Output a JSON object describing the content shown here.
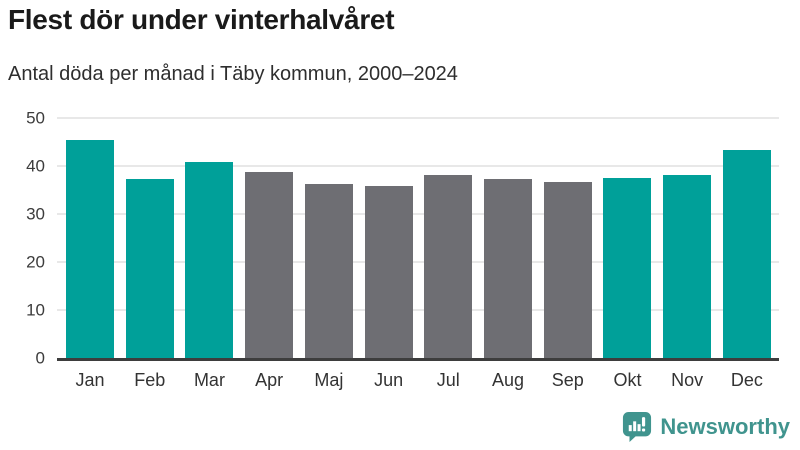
{
  "header": {
    "title": "Flest dör under vinterhalvåret",
    "subtitle": "Antal döda per månad i Täby kommun, 2000–2024"
  },
  "chart_data": {
    "type": "bar",
    "title": "Flest dör under vinterhalvåret",
    "subtitle": "Antal döda per månad i Täby kommun, 2000–2024",
    "categories": [
      "Jan",
      "Feb",
      "Mar",
      "Apr",
      "Maj",
      "Jun",
      "Jul",
      "Aug",
      "Sep",
      "Okt",
      "Nov",
      "Dec"
    ],
    "values": [
      45.4,
      37.3,
      40.9,
      38.8,
      36.3,
      35.9,
      38.1,
      37.3,
      36.7,
      37.5,
      38.1,
      43.4
    ],
    "bar_colors": [
      "#00a099",
      "#00a099",
      "#00a099",
      "#6e6e73",
      "#6e6e73",
      "#6e6e73",
      "#6e6e73",
      "#6e6e73",
      "#6e6e73",
      "#00a099",
      "#00a099",
      "#00a099"
    ],
    "colors": {
      "winter_months": "#00a099",
      "summer_months": "#6e6e73"
    },
    "xlabel": "",
    "ylabel": "",
    "ylim": [
      0,
      50
    ],
    "y_ticks": [
      0,
      10,
      20,
      30,
      40,
      50
    ],
    "grid": "horizontal",
    "legend": "none"
  },
  "footer": {
    "brand": "Newsworthy",
    "brand_color": "#40948e",
    "logo_icon": "bar-chart-speech-bubble-icon"
  }
}
